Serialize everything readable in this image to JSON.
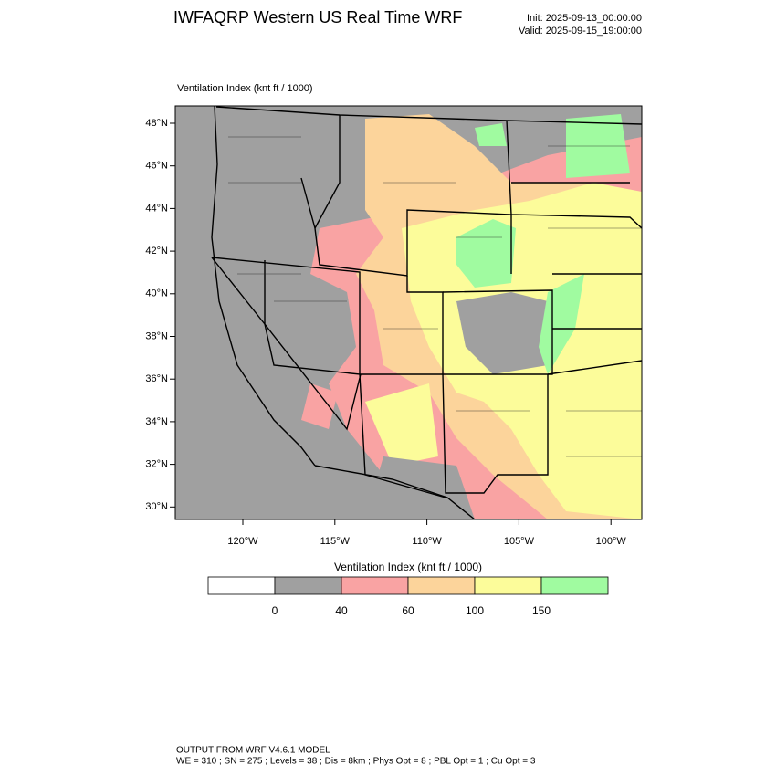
{
  "header": {
    "title": "IWFAQRP Western US Real Time WRF",
    "init": "Init: 2025-09-13_00:00:00",
    "valid": "Valid: 2025-09-15_19:00:00"
  },
  "map": {
    "title": "Ventilation Index   (knt ft / 1000)",
    "lat_labels": [
      "48°N",
      "46°N",
      "44°N",
      "42°N",
      "40°N",
      "38°N",
      "36°N",
      "34°N",
      "32°N",
      "30°N"
    ],
    "lon_labels": [
      "120°W",
      "115°W",
      "110°W",
      "105°W",
      "100°W"
    ]
  },
  "colorbar": {
    "title": "Ventilation Index  (knt ft / 1000)",
    "colors": [
      "#ffffff",
      "#a0a0a0",
      "#f9a3a3",
      "#fcd49b",
      "#fcfc9a",
      "#a0fba0"
    ],
    "ticks": [
      0,
      40,
      60,
      100,
      150
    ]
  },
  "footer": {
    "line1": "OUTPUT FROM WRF V4.6.1 MODEL",
    "line2": "WE = 310 ; SN = 275 ; Levels = 38 ; Dis = 8km ; Phys Opt = 8 ; PBL Opt = 1 ; Cu Opt = 3"
  }
}
